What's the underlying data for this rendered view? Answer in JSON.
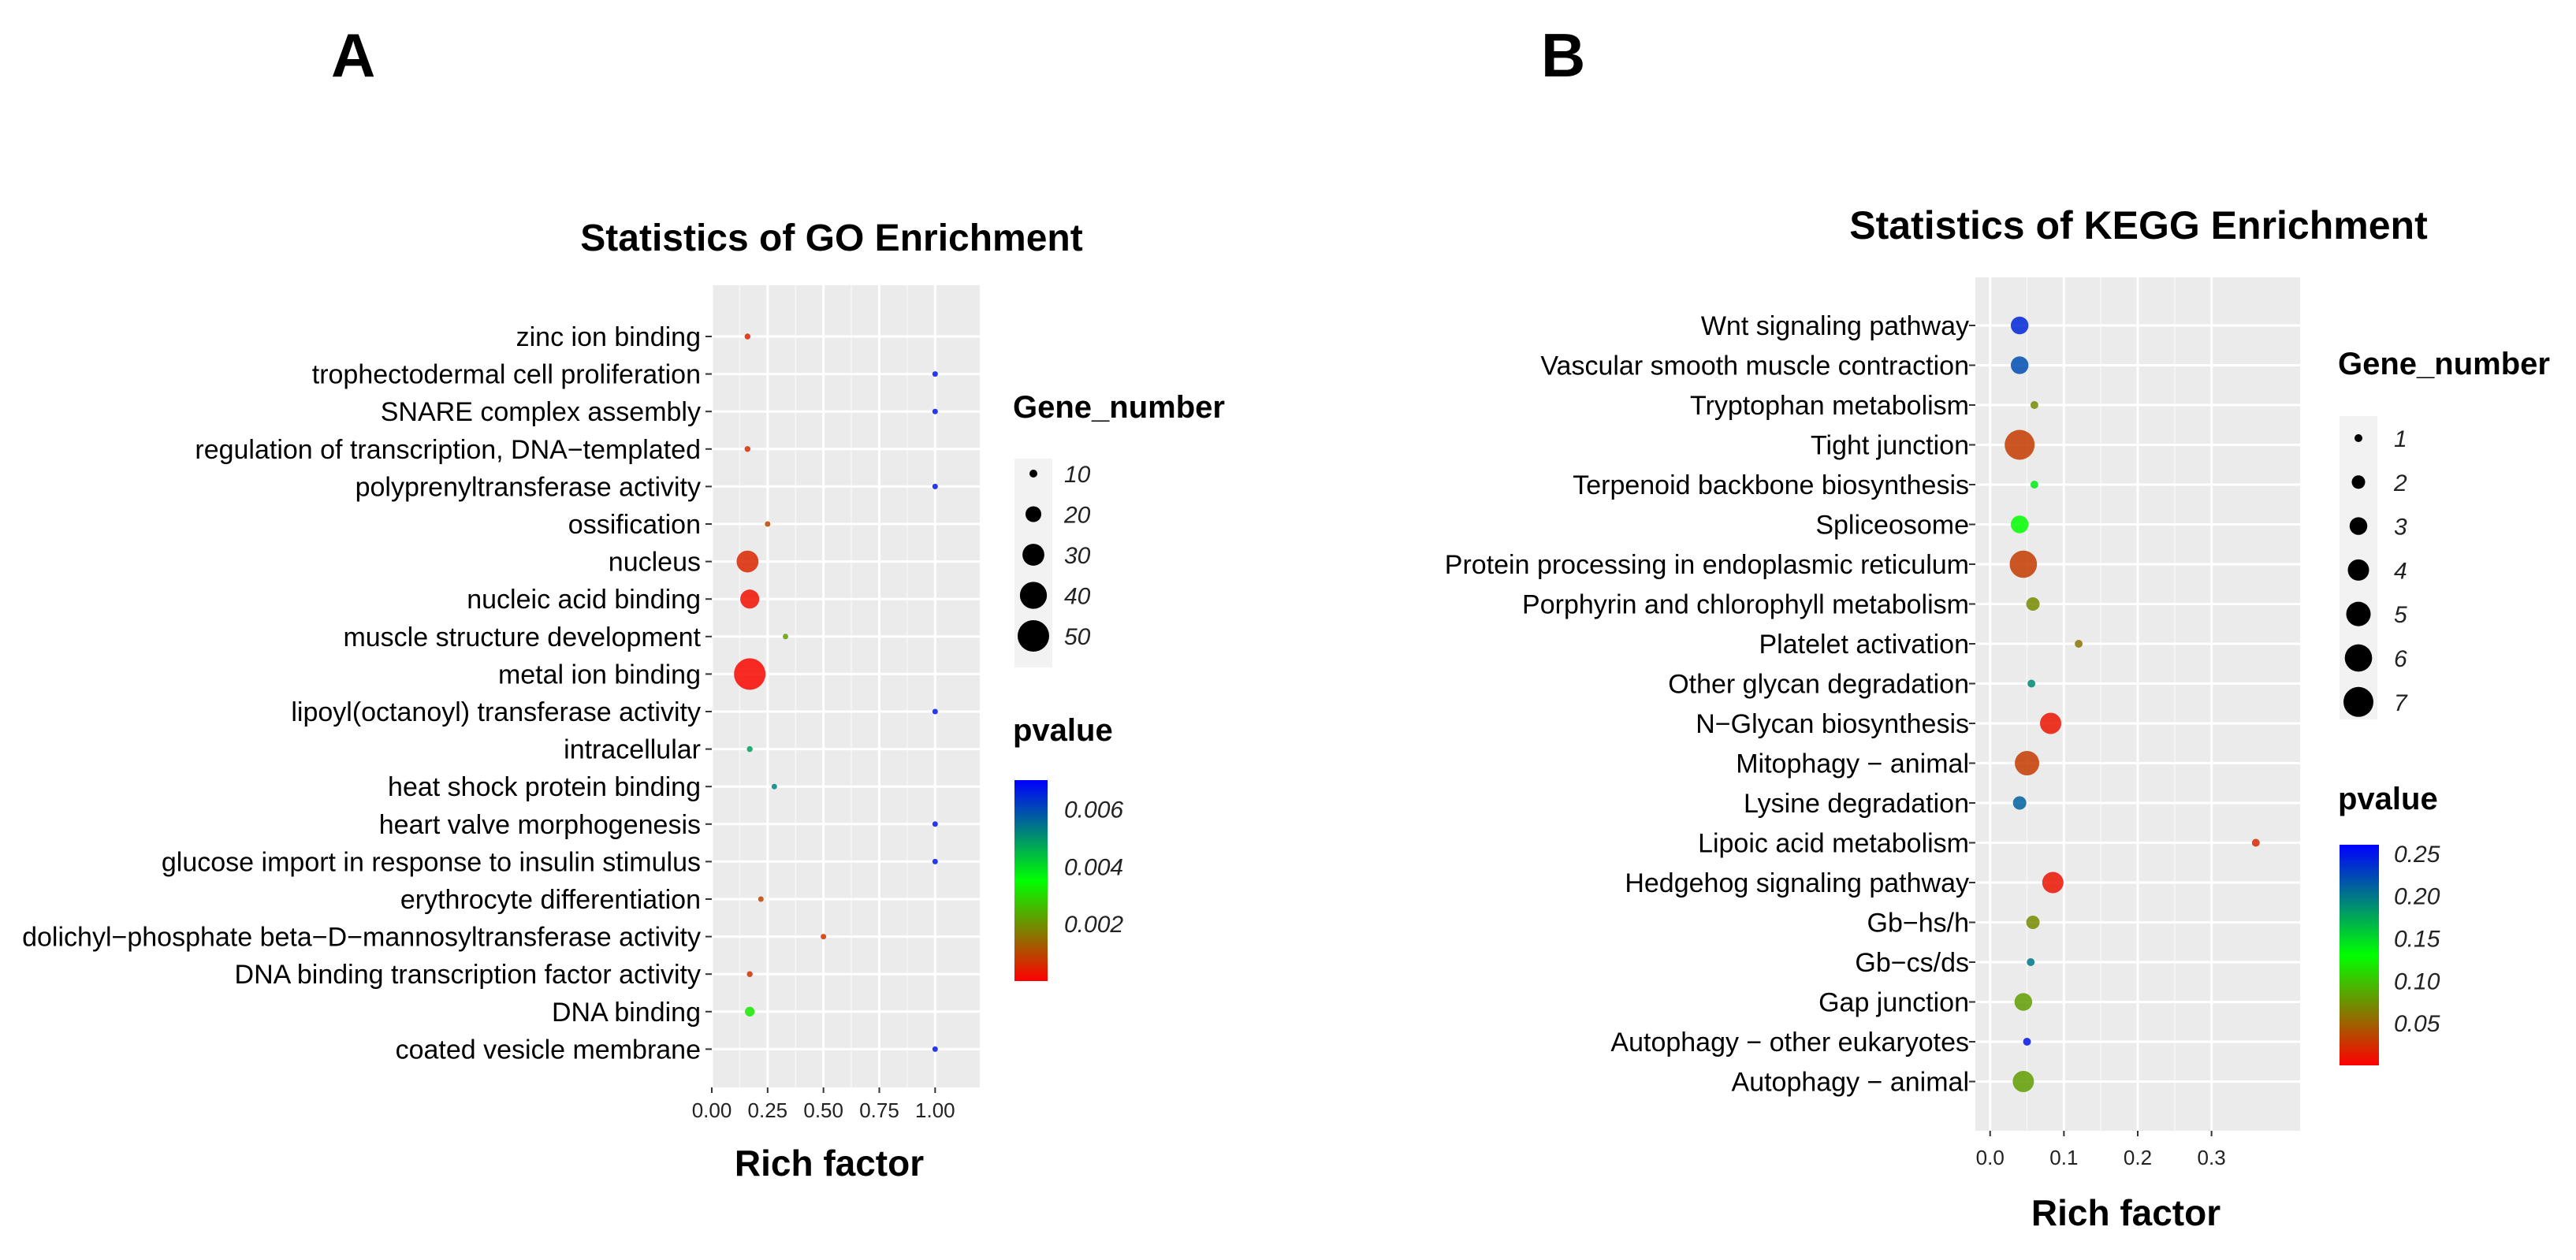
{
  "panels": [
    {
      "letter": "A"
    },
    {
      "letter": "B"
    }
  ],
  "chart_data": [
    {
      "type": "scatter",
      "title": "Statistics of GO Enrichment",
      "xlabel": "Rich factor",
      "ylabel": "",
      "xlim": [
        0,
        1.2
      ],
      "x_ticks": [
        "0.00",
        "0.25",
        "0.50",
        "0.75",
        "1.00"
      ],
      "x_tick_values": [
        0,
        0.25,
        0.5,
        0.75,
        1.0
      ],
      "grid": true,
      "legend_placement": "right",
      "size_legend": {
        "title": "Gene_number",
        "values": [
          10,
          20,
          30,
          40,
          50
        ],
        "labels": [
          "10",
          "20",
          "30",
          "40",
          "50"
        ]
      },
      "color_legend": {
        "title": "pvalue",
        "range": [
          0,
          0.007
        ],
        "ticks": [
          0.006,
          0.004,
          0.002
        ],
        "tick_labels": [
          "0.006",
          "0.004",
          "0.002"
        ],
        "low_color": "#ff0000",
        "mid_color": "#00ff00",
        "high_color": "#0000ff"
      },
      "points": [
        {
          "category": "zinc ion binding",
          "x": 0.16,
          "size": 8,
          "pvalue": 0.0005
        },
        {
          "category": "trophectodermal cell proliferation",
          "x": 1.0,
          "size": 1,
          "pvalue": 0.0067
        },
        {
          "category": "SNARE complex assembly",
          "x": 1.0,
          "size": 1,
          "pvalue": 0.0067
        },
        {
          "category": "regulation of transcription, DNA−templated",
          "x": 0.16,
          "size": 8,
          "pvalue": 0.0006
        },
        {
          "category": "polyprenyltransferase activity",
          "x": 1.0,
          "size": 1,
          "pvalue": 0.0067
        },
        {
          "category": "ossification",
          "x": 0.25,
          "size": 2,
          "pvalue": 0.0009
        },
        {
          "category": "nucleus",
          "x": 0.16,
          "size": 30,
          "pvalue": 0.0005
        },
        {
          "category": "nucleic acid binding",
          "x": 0.17,
          "size": 25,
          "pvalue": 0.0002
        },
        {
          "category": "muscle structure development",
          "x": 0.33,
          "size": 3,
          "pvalue": 0.0022
        },
        {
          "category": "metal ion binding",
          "x": 0.17,
          "size": 50,
          "pvalue": 0.0001
        },
        {
          "category": "lipoyl(octanoyl) transferase activity",
          "x": 1.0,
          "size": 1,
          "pvalue": 0.0067
        },
        {
          "category": "intracellular",
          "x": 0.17,
          "size": 8,
          "pvalue": 0.0048
        },
        {
          "category": "heat shock protein binding",
          "x": 0.28,
          "size": 2,
          "pvalue": 0.0052
        },
        {
          "category": "heart valve morphogenesis",
          "x": 1.0,
          "size": 1,
          "pvalue": 0.0067
        },
        {
          "category": "glucose import in response to insulin stimulus",
          "x": 1.0,
          "size": 1,
          "pvalue": 0.0067
        },
        {
          "category": "erythrocyte differentiation",
          "x": 0.22,
          "size": 2,
          "pvalue": 0.0009
        },
        {
          "category": "dolichyl−phosphate beta−D−mannosyltransferase activity",
          "x": 0.5,
          "size": 1,
          "pvalue": 0.0007
        },
        {
          "category": "DNA binding transcription factor activity",
          "x": 0.17,
          "size": 8,
          "pvalue": 0.0007
        },
        {
          "category": "DNA binding",
          "x": 0.17,
          "size": 12,
          "pvalue": 0.0032
        },
        {
          "category": "coated vesicle membrane",
          "x": 1.0,
          "size": 1,
          "pvalue": 0.0067
        }
      ]
    },
    {
      "type": "scatter",
      "title": "Statistics of KEGG Enrichment",
      "xlabel": "Rich factor",
      "ylabel": "",
      "xlim": [
        -0.02,
        0.42
      ],
      "x_ticks": [
        "0.0",
        "0.1",
        "0.2",
        "0.3"
      ],
      "x_tick_values": [
        0,
        0.1,
        0.2,
        0.3
      ],
      "grid": true,
      "legend_placement": "right",
      "size_legend": {
        "title": "Gene_number",
        "values": [
          1,
          2,
          3,
          4,
          5,
          6,
          7
        ],
        "labels": [
          "1",
          "2",
          "3",
          "4",
          "5",
          "6",
          "7"
        ]
      },
      "color_legend": {
        "title": "pvalue",
        "range": [
          0,
          0.26
        ],
        "ticks": [
          0.25,
          0.2,
          0.15,
          0.1,
          0.05
        ],
        "tick_labels": [
          "0.25",
          "0.20",
          "0.15",
          "0.10",
          "0.05"
        ],
        "low_color": "#ff0000",
        "mid_color": "#00ff00",
        "high_color": "#0000ff"
      },
      "points": [
        {
          "category": "Wnt signaling pathway",
          "x": 0.04,
          "size": 3,
          "pvalue": 0.24
        },
        {
          "category": "Vascular smooth muscle contraction",
          "x": 0.04,
          "size": 3,
          "pvalue": 0.22
        },
        {
          "category": "Tryptophan metabolism",
          "x": 0.06,
          "size": 1,
          "pvalue": 0.07
        },
        {
          "category": "Tight junction",
          "x": 0.04,
          "size": 7,
          "pvalue": 0.03
        },
        {
          "category": "Terpenoid backbone biosynthesis",
          "x": 0.06,
          "size": 1,
          "pvalue": 0.14
        },
        {
          "category": "Spliceosome",
          "x": 0.04,
          "size": 3,
          "pvalue": 0.13
        },
        {
          "category": "Protein processing in endoplasmic reticulum",
          "x": 0.045,
          "size": 6,
          "pvalue": 0.03
        },
        {
          "category": "Porphyrin and chlorophyll metabolism",
          "x": 0.058,
          "size": 2,
          "pvalue": 0.07
        },
        {
          "category": "Platelet activation",
          "x": 0.12,
          "size": 1,
          "pvalue": 0.06
        },
        {
          "category": "Other glycan degradation",
          "x": 0.056,
          "size": 1,
          "pvalue": 0.19
        },
        {
          "category": "N−Glycan biosynthesis",
          "x": 0.082,
          "size": 4,
          "pvalue": 0.01
        },
        {
          "category": "Mitophagy − animal",
          "x": 0.05,
          "size": 5,
          "pvalue": 0.03
        },
        {
          "category": "Lysine degradation",
          "x": 0.04,
          "size": 2,
          "pvalue": 0.21
        },
        {
          "category": "Lipoic acid metabolism",
          "x": 0.36,
          "size": 1,
          "pvalue": 0.02
        },
        {
          "category": "Hedgehog signaling pathway",
          "x": 0.085,
          "size": 4,
          "pvalue": 0.01
        },
        {
          "category": "Gb−hs/h",
          "x": 0.058,
          "size": 2,
          "pvalue": 0.07
        },
        {
          "category": "Gb−cs/ds",
          "x": 0.055,
          "size": 1,
          "pvalue": 0.2
        },
        {
          "category": "Gap junction",
          "x": 0.045,
          "size": 3,
          "pvalue": 0.08
        },
        {
          "category": "Autophagy − other eukaryotes",
          "x": 0.05,
          "size": 1,
          "pvalue": 0.25
        },
        {
          "category": "Autophagy − animal",
          "x": 0.045,
          "size": 4,
          "pvalue": 0.08
        }
      ]
    }
  ]
}
